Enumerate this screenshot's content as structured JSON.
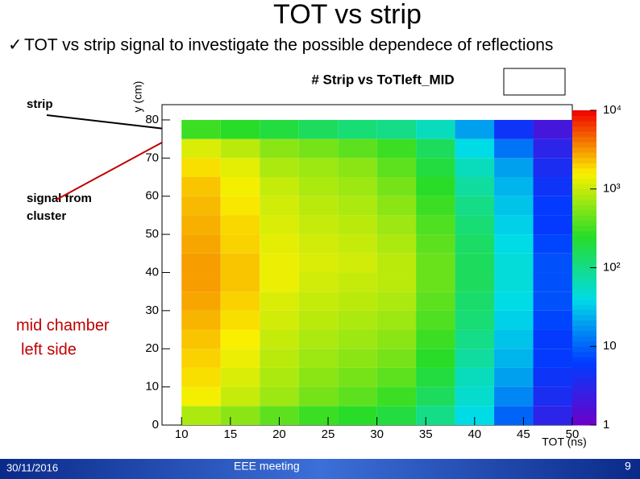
{
  "slide": {
    "title": "TOT vs strip",
    "bullet": "TOT vs strip signal to investigate the possible dependece of reflections",
    "label_strip": "strip",
    "label_signal": [
      "signal from",
      "cluster"
    ],
    "label_side": [
      "mid chamber",
      "left side"
    ],
    "footer_date": "30/11/2016",
    "footer_event": "EEE meeting",
    "footer_page": "9"
  },
  "chart_data": {
    "type": "heatmap",
    "title": "# Strip vs ToTleft_MID",
    "x_label": "TOT (ns)",
    "y_label": "y (cm)",
    "xbins": [
      10,
      14,
      18,
      22,
      26,
      30,
      34,
      38,
      42,
      46,
      50
    ],
    "ybins": [
      0,
      5,
      10,
      15,
      20,
      25,
      30,
      35,
      40,
      45,
      50,
      55,
      60,
      65,
      70,
      75,
      80
    ],
    "values": [
      [
        800,
        600,
        400,
        300,
        250,
        200,
        100,
        40,
        10,
        3
      ],
      [
        1500,
        1000,
        700,
        500,
        400,
        300,
        150,
        50,
        15,
        4
      ],
      [
        1800,
        1200,
        800,
        600,
        500,
        400,
        200,
        60,
        20,
        5
      ],
      [
        2000,
        1400,
        900,
        700,
        600,
        500,
        250,
        80,
        25,
        6
      ],
      [
        2200,
        1600,
        1000,
        800,
        700,
        600,
        300,
        100,
        30,
        6
      ],
      [
        2500,
        1800,
        1100,
        900,
        800,
        700,
        350,
        120,
        35,
        7
      ],
      [
        2800,
        2000,
        1200,
        1000,
        900,
        800,
        400,
        130,
        40,
        8
      ],
      [
        3000,
        2200,
        1400,
        1100,
        1000,
        900,
        450,
        150,
        45,
        8
      ],
      [
        3000,
        2200,
        1400,
        1200,
        1100,
        900,
        450,
        150,
        45,
        8
      ],
      [
        2800,
        2000,
        1300,
        1100,
        1000,
        800,
        400,
        140,
        40,
        7
      ],
      [
        2600,
        1900,
        1200,
        1000,
        900,
        700,
        350,
        120,
        35,
        6
      ],
      [
        2400,
        1700,
        1100,
        900,
        800,
        600,
        300,
        100,
        30,
        6
      ],
      [
        2200,
        1500,
        1000,
        800,
        700,
        500,
        250,
        80,
        25,
        5
      ],
      [
        1800,
        1300,
        800,
        700,
        600,
        400,
        200,
        60,
        20,
        4
      ],
      [
        1200,
        900,
        600,
        500,
        400,
        300,
        150,
        40,
        12,
        3
      ],
      [
        300,
        250,
        200,
        150,
        120,
        100,
        60,
        20,
        5,
        2
      ]
    ],
    "xlim": [
      8,
      50
    ],
    "ylim": [
      0,
      84
    ],
    "zlim": [
      1,
      10000
    ],
    "log_z": true,
    "xticks": [
      10,
      15,
      20,
      25,
      30,
      35,
      40,
      45,
      50
    ],
    "yticks": [
      0,
      10,
      20,
      30,
      40,
      50,
      60,
      70,
      80
    ],
    "zticks": [
      1,
      10,
      {
        "value": 100,
        "label": "10²"
      },
      {
        "value": 1000,
        "label": "10³"
      },
      {
        "value": 10000,
        "label": "10⁴"
      }
    ]
  }
}
